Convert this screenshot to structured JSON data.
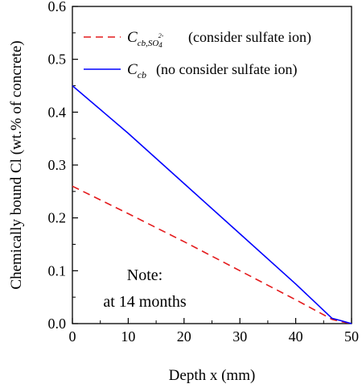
{
  "chart_data": {
    "type": "line",
    "xlabel": "Depth x (mm)",
    "ylabel": "Chemically bound Cl (wt.% of concrete)",
    "xlim": [
      0,
      50
    ],
    "ylim": [
      0,
      0.6
    ],
    "xticks": [
      "0",
      "10",
      "20",
      "30",
      "40",
      "50"
    ],
    "yticks": [
      "0.0",
      "0.1",
      "0.2",
      "0.3",
      "0.4",
      "0.5",
      "0.6"
    ],
    "legend_position": "top-right",
    "grid": false,
    "annotation": [
      "Note:",
      "at 14 months"
    ],
    "series": [
      {
        "legend_symbol": {
          "main": "C",
          "sub": "cb,SO",
          "sub2": "4",
          "sup": "2-"
        },
        "legend_desc": "(consider sulfate ion)",
        "style": "dashed",
        "color": "#e41a1c",
        "points": [
          [
            0,
            0.26
          ],
          [
            10,
            0.208
          ],
          [
            20,
            0.155
          ],
          [
            30,
            0.1
          ],
          [
            40,
            0.045
          ],
          [
            46.5,
            0.008
          ],
          [
            48,
            0.004
          ],
          [
            50,
            0.0
          ]
        ]
      },
      {
        "legend_symbol": {
          "main": "C",
          "sub": "cb"
        },
        "legend_desc": "(no consider sulfate ion)",
        "style": "solid",
        "color": "#0000ff",
        "points": [
          [
            0,
            0.45
          ],
          [
            10,
            0.36
          ],
          [
            20,
            0.265
          ],
          [
            30,
            0.17
          ],
          [
            40,
            0.075
          ],
          [
            46.5,
            0.01
          ],
          [
            48,
            0.006
          ],
          [
            50,
            0.0
          ]
        ]
      }
    ]
  }
}
